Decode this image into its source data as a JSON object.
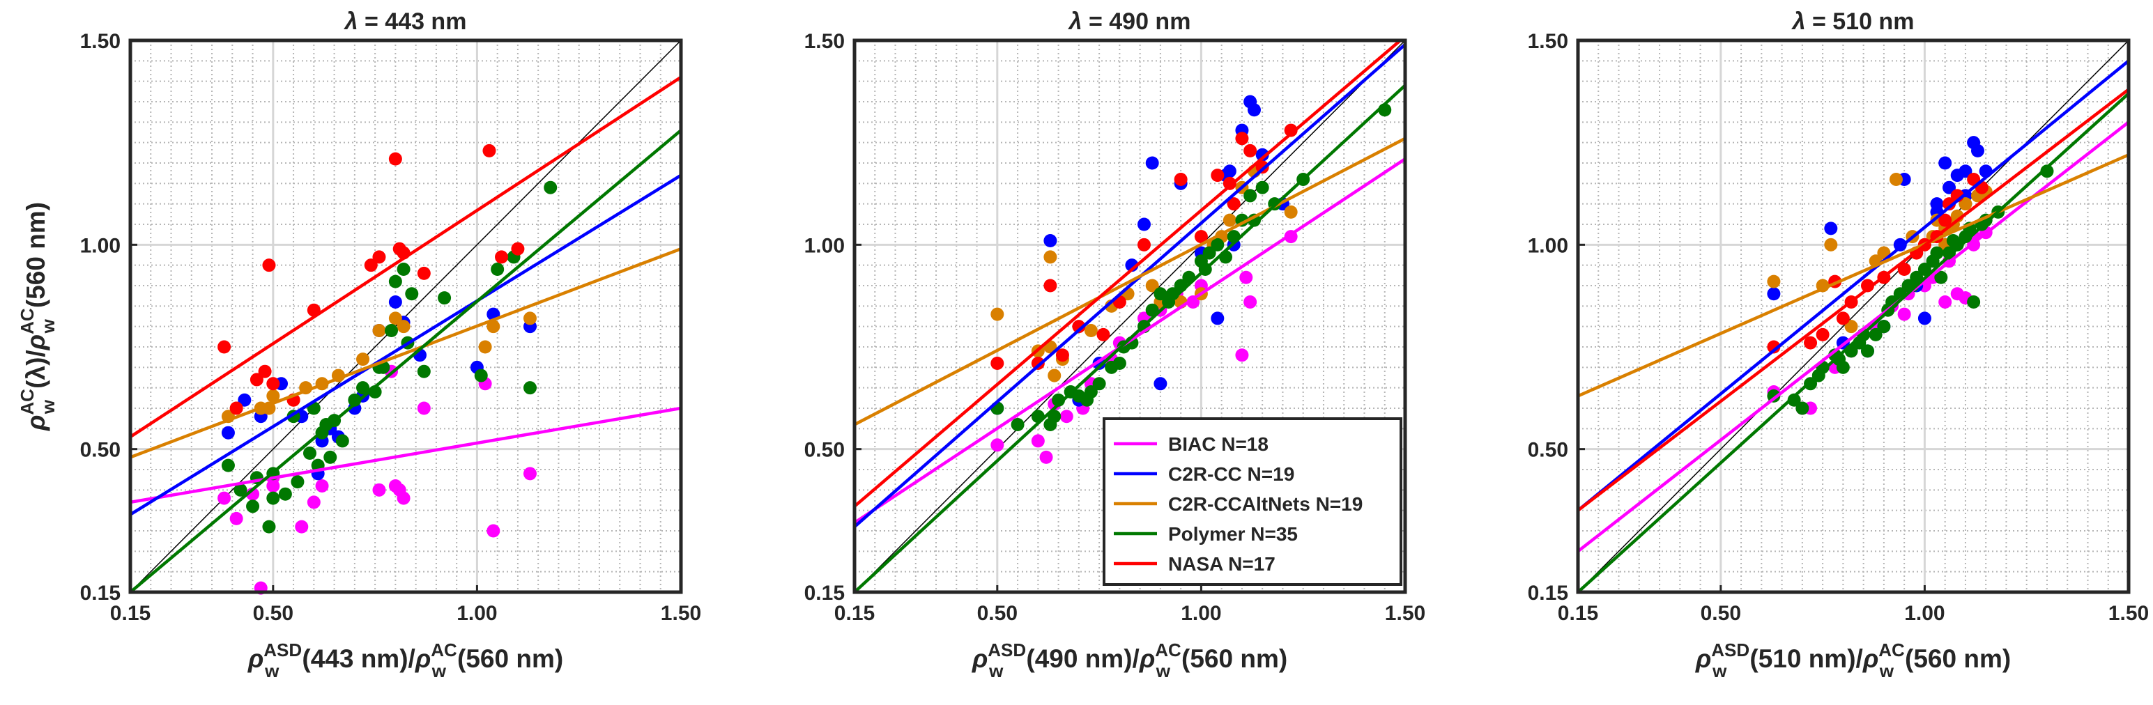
{
  "chart_data": [
    {
      "type": "scatter",
      "title_sym": "λ",
      "title_rest": " = 443 nm",
      "xlabel": {
        "rho": "ρ",
        "sup": "ASD",
        "sub": "w",
        "mid": "(443 nm)/",
        "rho2": "ρ",
        "sup2": "AC",
        "sub2": "w",
        "end": "(560 nm)"
      },
      "ylabel": {
        "rho": "ρ",
        "sup": "AC",
        "sub": "w",
        "mid": "(λ)/",
        "rho2": "ρ",
        "sup2": "AC",
        "sub2": "w",
        "end": "(560 nm)"
      },
      "xlim": [
        0.15,
        1.5
      ],
      "ylim": [
        0.15,
        1.5
      ],
      "tick_labels": [
        "0.15",
        "0.50",
        "1.00",
        "1.50"
      ],
      "tick_values": [
        0.15,
        0.5,
        1.0,
        1.5
      ],
      "grid": true,
      "series": [
        {
          "name": "BIAC",
          "color": "#ff00ff",
          "x": [
            0.38,
            0.41,
            0.47,
            0.5,
            0.5,
            0.57,
            0.6,
            0.62,
            0.76,
            0.79,
            0.81,
            0.87,
            1.02,
            1.04,
            1.13,
            0.8,
            0.45,
            0.82
          ],
          "y": [
            0.38,
            0.33,
            0.16,
            0.41,
            0.43,
            0.31,
            0.37,
            0.41,
            0.4,
            0.69,
            0.4,
            0.6,
            0.66,
            0.3,
            0.44,
            0.41,
            0.39,
            0.38
          ],
          "fit": [
            [
              0.15,
              0.37
            ],
            [
              1.5,
              0.6
            ]
          ]
        },
        {
          "name": "C2R-CC",
          "color": "#0000ff",
          "x": [
            0.39,
            0.43,
            0.47,
            0.52,
            0.57,
            0.62,
            0.64,
            0.66,
            0.7,
            0.72,
            0.76,
            0.8,
            0.82,
            0.86,
            1.0,
            1.04,
            1.13,
            0.61
          ],
          "y": [
            0.54,
            0.62,
            0.58,
            0.66,
            0.58,
            0.52,
            0.55,
            0.53,
            0.6,
            0.63,
            0.79,
            0.86,
            0.81,
            0.73,
            0.7,
            0.83,
            0.8,
            0.44
          ],
          "fit": [
            [
              0.15,
              0.34
            ],
            [
              1.5,
              1.17
            ]
          ]
        },
        {
          "name": "C2R-CCAltNets",
          "color": "#d98000",
          "x": [
            0.39,
            0.41,
            0.47,
            0.5,
            0.55,
            0.58,
            0.62,
            0.66,
            0.72,
            0.76,
            0.8,
            0.82,
            1.02,
            1.04,
            1.13,
            0.49
          ],
          "y": [
            0.58,
            0.6,
            0.6,
            0.63,
            0.62,
            0.65,
            0.66,
            0.68,
            0.72,
            0.79,
            0.82,
            0.8,
            0.75,
            0.8,
            0.82,
            0.6
          ],
          "fit": [
            [
              0.15,
              0.48
            ],
            [
              1.5,
              0.99
            ]
          ]
        },
        {
          "name": "Polymer",
          "color": "#007800",
          "x": [
            0.39,
            0.42,
            0.45,
            0.49,
            0.5,
            0.53,
            0.56,
            0.59,
            0.61,
            0.63,
            0.65,
            0.67,
            0.72,
            0.76,
            0.79,
            0.8,
            0.82,
            0.84,
            0.87,
            0.92,
            1.01,
            1.05,
            1.09,
            1.13,
            1.18,
            0.5,
            0.55,
            0.62,
            0.7,
            0.75,
            0.83,
            0.6,
            0.46,
            0.64,
            0.77
          ],
          "y": [
            0.46,
            0.4,
            0.36,
            0.31,
            0.44,
            0.39,
            0.42,
            0.49,
            0.46,
            0.56,
            0.57,
            0.52,
            0.65,
            0.7,
            0.79,
            0.91,
            0.94,
            0.88,
            0.69,
            0.87,
            0.68,
            0.94,
            0.97,
            0.65,
            1.14,
            0.38,
            0.58,
            0.54,
            0.62,
            0.64,
            0.76,
            0.6,
            0.43,
            0.48,
            0.7
          ],
          "fit": [
            [
              0.15,
              0.15
            ],
            [
              1.5,
              1.28
            ]
          ]
        },
        {
          "name": "NASA",
          "color": "#ff0000",
          "x": [
            0.38,
            0.41,
            0.46,
            0.48,
            0.49,
            0.5,
            0.55,
            0.6,
            0.74,
            0.76,
            0.8,
            0.81,
            0.87,
            1.03,
            1.06,
            1.1,
            0.82
          ],
          "y": [
            0.75,
            0.6,
            0.67,
            0.69,
            0.95,
            0.66,
            0.62,
            0.84,
            0.95,
            0.97,
            1.21,
            0.99,
            0.93,
            1.23,
            0.97,
            0.99,
            0.98
          ],
          "fit": [
            [
              0.15,
              0.53
            ],
            [
              1.5,
              1.41
            ]
          ]
        }
      ]
    },
    {
      "type": "scatter",
      "title_sym": "λ",
      "title_rest": " = 490 nm",
      "xlabel": {
        "rho": "ρ",
        "sup": "ASD",
        "sub": "w",
        "mid": "(490 nm)/",
        "rho2": "ρ",
        "sup2": "AC",
        "sub2": "w",
        "end": "(560 nm)"
      },
      "xlim": [
        0.15,
        1.5
      ],
      "ylim": [
        0.15,
        1.5
      ],
      "tick_labels": [
        "0.15",
        "0.50",
        "1.00",
        "1.50"
      ],
      "tick_values": [
        0.15,
        0.5,
        1.0,
        1.5
      ],
      "grid": true,
      "legend": {
        "location": "bottom-right",
        "entries": [
          "BIAC N=18",
          "C2R-CC N=19",
          "C2R-CCAltNets N=19",
          "Polymer N=35",
          "NASA N=17"
        ]
      },
      "series": [
        {
          "name": "BIAC",
          "color": "#ff00ff",
          "x": [
            0.5,
            0.6,
            0.62,
            0.67,
            0.71,
            0.73,
            0.78,
            0.86,
            0.9,
            0.98,
            1.0,
            1.1,
            1.11,
            1.12,
            1.22,
            0.94,
            0.64,
            0.8
          ],
          "y": [
            0.51,
            0.52,
            0.48,
            0.58,
            0.6,
            0.66,
            0.72,
            0.82,
            0.84,
            0.86,
            0.9,
            0.73,
            0.92,
            0.86,
            1.02,
            0.88,
            0.61,
            0.76
          ],
          "fit": [
            [
              0.15,
              0.32
            ],
            [
              1.5,
              1.21
            ]
          ]
        },
        {
          "name": "C2R-CC",
          "color": "#0000ff",
          "x": [
            0.5,
            0.63,
            0.75,
            0.86,
            0.88,
            0.9,
            0.95,
            1.04,
            1.06,
            1.07,
            1.1,
            1.12,
            1.13,
            1.15,
            1.2,
            0.83,
            1.08,
            0.7,
            1.0
          ],
          "y": [
            0.6,
            1.01,
            0.71,
            1.05,
            1.2,
            0.66,
            1.15,
            0.82,
            1.17,
            1.18,
            1.28,
            1.35,
            1.33,
            1.22,
            1.1,
            0.95,
            1.0,
            0.62,
            0.98
          ],
          "fit": [
            [
              0.15,
              0.31
            ],
            [
              1.5,
              1.49
            ]
          ]
        },
        {
          "name": "C2R-CCAltNets",
          "color": "#d98000",
          "x": [
            0.5,
            0.63,
            0.63,
            0.64,
            0.66,
            0.73,
            0.82,
            0.9,
            0.95,
            1.0,
            1.03,
            1.07,
            1.1,
            1.13,
            1.22,
            0.78,
            0.88,
            1.05,
            0.6
          ],
          "y": [
            0.83,
            0.97,
            0.75,
            0.68,
            0.72,
            0.79,
            0.88,
            0.86,
            0.86,
            0.88,
            1.0,
            1.06,
            1.14,
            1.18,
            1.08,
            0.85,
            0.9,
            1.02,
            0.74
          ],
          "fit": [
            [
              0.15,
              0.56
            ],
            [
              1.5,
              1.26
            ]
          ]
        },
        {
          "name": "Polymer",
          "color": "#007800",
          "x": [
            0.5,
            0.55,
            0.6,
            0.63,
            0.65,
            0.68,
            0.7,
            0.73,
            0.75,
            0.78,
            0.8,
            0.83,
            0.86,
            0.88,
            0.9,
            0.92,
            0.95,
            0.97,
            1.0,
            1.02,
            1.04,
            1.06,
            1.08,
            1.1,
            1.12,
            1.15,
            1.18,
            1.25,
            1.45,
            0.64,
            0.72,
            0.81,
            0.93,
            1.01,
            1.13
          ],
          "y": [
            0.6,
            0.56,
            0.58,
            0.56,
            0.62,
            0.64,
            0.63,
            0.64,
            0.66,
            0.7,
            0.71,
            0.76,
            0.8,
            0.84,
            0.88,
            0.86,
            0.9,
            0.92,
            0.96,
            0.98,
            1.0,
            0.97,
            1.02,
            1.06,
            1.12,
            1.14,
            1.1,
            1.16,
            1.33,
            0.58,
            0.62,
            0.75,
            0.88,
            0.94,
            1.06
          ],
          "fit": [
            [
              0.15,
              0.15
            ],
            [
              1.5,
              1.39
            ]
          ]
        },
        {
          "name": "NASA",
          "color": "#ff0000",
          "x": [
            0.5,
            0.6,
            0.63,
            0.66,
            0.7,
            0.76,
            0.86,
            0.95,
            1.04,
            1.07,
            1.1,
            1.12,
            1.15,
            1.22,
            1.0,
            0.8,
            1.08
          ],
          "y": [
            0.71,
            0.71,
            0.9,
            0.73,
            0.8,
            0.78,
            1.0,
            1.16,
            1.17,
            1.15,
            1.26,
            1.23,
            1.19,
            1.28,
            1.02,
            0.86,
            1.1
          ],
          "fit": [
            [
              0.15,
              0.36
            ],
            [
              1.5,
              1.51
            ]
          ]
        }
      ]
    },
    {
      "type": "scatter",
      "title_sym": "λ",
      "title_rest": " = 510 nm",
      "xlabel": {
        "rho": "ρ",
        "sup": "ASD",
        "sub": "w",
        "mid": "(510 nm)/",
        "rho2": "ρ",
        "sup2": "AC",
        "sub2": "w",
        "end": "(560 nm)"
      },
      "xlim": [
        0.15,
        1.5
      ],
      "ylim": [
        0.15,
        1.5
      ],
      "tick_labels": [
        "0.15",
        "0.50",
        "1.00",
        "1.50"
      ],
      "tick_values": [
        0.15,
        0.5,
        1.0,
        1.5
      ],
      "grid": true,
      "series": [
        {
          "name": "BIAC",
          "color": "#ff00ff",
          "x": [
            0.63,
            0.72,
            0.78,
            0.82,
            0.88,
            0.92,
            0.96,
            1.0,
            1.02,
            1.05,
            1.06,
            1.08,
            1.1,
            1.12,
            1.15,
            0.7,
            0.95,
            1.12
          ],
          "y": [
            0.64,
            0.6,
            0.7,
            0.74,
            0.8,
            0.85,
            0.88,
            0.9,
            0.92,
            0.86,
            0.96,
            0.88,
            0.87,
            1.0,
            1.03,
            0.6,
            0.83,
            1.02
          ],
          "fit": [
            [
              0.15,
              0.25
            ],
            [
              1.5,
              1.3
            ]
          ]
        },
        {
          "name": "C2R-CC",
          "color": "#0000ff",
          "x": [
            0.63,
            0.77,
            0.8,
            0.86,
            0.9,
            0.95,
            0.98,
            1.0,
            1.03,
            1.05,
            1.06,
            1.08,
            1.1,
            1.12,
            1.13,
            1.15,
            1.03,
            0.94,
            1.1
          ],
          "y": [
            0.88,
            1.04,
            0.76,
            0.74,
            0.8,
            1.16,
            0.9,
            0.82,
            1.1,
            1.2,
            1.14,
            1.17,
            1.12,
            1.25,
            1.23,
            1.18,
            1.08,
            1.0,
            1.18
          ],
          "fit": [
            [
              0.15,
              0.35
            ],
            [
              1.5,
              1.45
            ]
          ]
        },
        {
          "name": "C2R-CCAltNets",
          "color": "#d98000",
          "x": [
            0.63,
            0.77,
            0.82,
            0.9,
            0.93,
            0.97,
            1.0,
            1.03,
            1.05,
            1.07,
            1.1,
            1.13,
            1.15,
            0.88,
            0.98,
            1.02,
            1.08,
            0.75,
            1.05
          ],
          "y": [
            0.91,
            1.0,
            0.8,
            0.98,
            1.16,
            1.02,
            1.0,
            1.06,
            1.04,
            1.05,
            1.1,
            1.12,
            1.13,
            0.96,
            0.98,
            1.02,
            1.07,
            0.9,
            1.0
          ],
          "fit": [
            [
              0.15,
              0.63
            ],
            [
              1.5,
              1.22
            ]
          ]
        },
        {
          "name": "Polymer",
          "color": "#007800",
          "x": [
            0.63,
            0.7,
            0.72,
            0.75,
            0.78,
            0.8,
            0.82,
            0.84,
            0.86,
            0.88,
            0.9,
            0.92,
            0.94,
            0.96,
            0.98,
            1.0,
            1.02,
            1.04,
            1.06,
            1.08,
            1.1,
            1.12,
            1.15,
            1.18,
            1.3,
            0.74,
            0.79,
            0.85,
            0.91,
            0.97,
            1.03,
            1.07,
            1.11,
            0.68,
            1.14
          ],
          "y": [
            0.63,
            0.6,
            0.66,
            0.7,
            0.73,
            0.7,
            0.74,
            0.76,
            0.74,
            0.78,
            0.8,
            0.86,
            0.88,
            0.9,
            0.92,
            0.94,
            0.96,
            0.92,
            0.98,
            1.0,
            1.02,
            0.86,
            1.06,
            1.08,
            1.18,
            0.68,
            0.72,
            0.78,
            0.84,
            0.9,
            0.98,
            1.01,
            1.04,
            0.62,
            1.05
          ],
          "fit": [
            [
              0.15,
              0.15
            ],
            [
              1.5,
              1.37
            ]
          ]
        },
        {
          "name": "NASA",
          "color": "#ff0000",
          "x": [
            0.63,
            0.72,
            0.75,
            0.78,
            0.8,
            0.82,
            0.86,
            0.9,
            0.95,
            1.0,
            1.03,
            1.06,
            1.08,
            1.12,
            1.14,
            1.05,
            0.98
          ],
          "y": [
            0.75,
            0.76,
            0.78,
            0.91,
            0.82,
            0.86,
            0.9,
            0.92,
            0.94,
            1.0,
            1.02,
            1.1,
            1.12,
            1.16,
            1.14,
            1.06,
            0.98
          ],
          "fit": [
            [
              0.15,
              0.35
            ],
            [
              1.5,
              1.38
            ]
          ]
        }
      ]
    }
  ]
}
